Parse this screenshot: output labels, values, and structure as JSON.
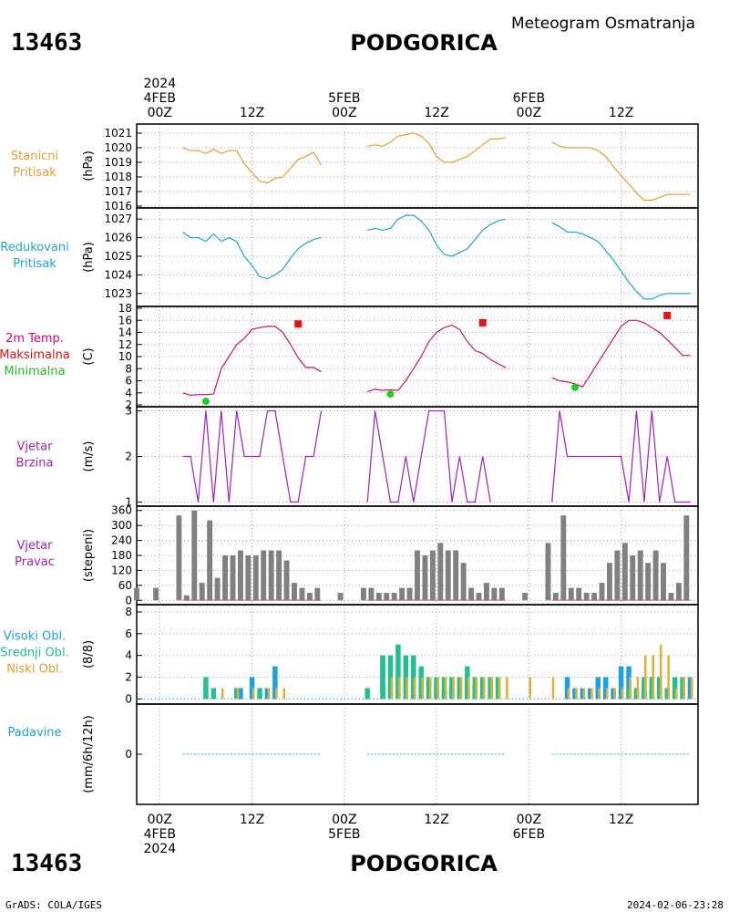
{
  "header": {
    "station_id": "13463",
    "station_name": "PODGORICA",
    "product": "Meteogram Osmatranja"
  },
  "footer": {
    "station_id": "13463",
    "station_name": "PODGORICA",
    "credit": "GrADS: COLA/IGES",
    "timestamp": "2024-02-06-23:28"
  },
  "time_axis": {
    "top_labels": [
      {
        "x": 0,
        "lines": [
          "2024",
          "4FEB",
          "00Z"
        ]
      },
      {
        "x": 12,
        "lines": [
          "12Z"
        ]
      },
      {
        "x": 24,
        "lines": [
          "5FEB",
          "00Z"
        ]
      },
      {
        "x": 36,
        "lines": [
          "12Z"
        ]
      },
      {
        "x": 48,
        "lines": [
          "6FEB",
          "00Z"
        ]
      },
      {
        "x": 60,
        "lines": [
          "12Z"
        ]
      }
    ],
    "bottom_labels": [
      {
        "x": 0,
        "lines": [
          "00Z",
          "4FEB",
          "2024"
        ]
      },
      {
        "x": 12,
        "lines": [
          "12Z"
        ]
      },
      {
        "x": 24,
        "lines": [
          "00Z",
          "5FEB"
        ]
      },
      {
        "x": 36,
        "lines": [
          "12Z"
        ]
      },
      {
        "x": 48,
        "lines": [
          "00Z",
          "6FEB"
        ]
      },
      {
        "x": 60,
        "lines": [
          "12Z"
        ]
      }
    ],
    "xlim": [
      -3,
      70
    ]
  },
  "panels": [
    {
      "id": "station-pressure",
      "label_lines": [
        {
          "text": "Stanicni",
          "color": "#e0a030"
        },
        {
          "text": "Pritisak",
          "color": "#e0a030"
        }
      ],
      "unit": "(hPa)",
      "ylim": [
        1016,
        1021.5
      ],
      "ticks": [
        1016,
        1017,
        1018,
        1019,
        1020,
        1021
      ]
    },
    {
      "id": "reduced-pressure",
      "label_lines": [
        {
          "text": "Redukovani",
          "color": "#1aa6d0"
        },
        {
          "text": "Pritisak",
          "color": "#1aa6d0"
        }
      ],
      "unit": "(hPa)",
      "ylim": [
        1022.4,
        1027.5
      ],
      "ticks": [
        1023,
        1024,
        1025,
        1026,
        1027
      ]
    },
    {
      "id": "temperature",
      "label_lines": [
        {
          "text": "2m Temp.",
          "color": "#e0007a"
        },
        {
          "text": "Maksimalna",
          "color": "#e01010"
        },
        {
          "text": "Minimalna",
          "color": "#20c020"
        }
      ],
      "unit": "(C)",
      "ylim": [
        2,
        18
      ],
      "ticks": [
        2,
        4,
        6,
        8,
        10,
        12,
        14,
        16,
        18
      ]
    },
    {
      "id": "wind-speed",
      "label_lines": [
        {
          "text": "Vjetar",
          "color": "#a020c0"
        },
        {
          "text": "Brzina",
          "color": "#a020c0"
        }
      ],
      "unit": "(m/s)",
      "ylim": [
        0.95,
        3.05
      ],
      "ticks": [
        1,
        2,
        3
      ]
    },
    {
      "id": "wind-direction",
      "label_lines": [
        {
          "text": "Vjetar",
          "color": "#a020c0"
        },
        {
          "text": "Pravac",
          "color": "#a020c0"
        }
      ],
      "unit": "(stepeni)",
      "ylim": [
        -10,
        370
      ],
      "ticks": [
        0,
        60,
        120,
        180,
        240,
        300,
        360
      ],
      "tick_labels": [
        "0",
        "60",
        "120",
        "180",
        "240",
        "300",
        "360"
      ]
    },
    {
      "id": "clouds",
      "label_lines": [
        {
          "text": "Visoki Obl.",
          "color": "#1aa6d0"
        },
        {
          "text": "Srednji Obl.",
          "color": "#20c090"
        },
        {
          "text": "Niski Obl.",
          "color": "#e0a030"
        }
      ],
      "unit": "(8/8)",
      "ylim": [
        -0.3,
        8.5
      ],
      "ticks": [
        0,
        2,
        4,
        6,
        8
      ]
    },
    {
      "id": "precipitation",
      "label_lines": [
        {
          "text": "Padavine",
          "color": "#1aa6d0"
        }
      ],
      "unit": "(mm/6h/12h)",
      "ylim": [
        -1,
        1
      ],
      "ticks": [
        0
      ]
    }
  ],
  "chart_data": [
    {
      "type": "line",
      "panel": "station-pressure",
      "color": "#e0a030",
      "segments": [
        {
          "x": [
            3,
            4,
            5,
            6,
            7,
            8,
            9,
            10,
            11,
            12,
            13,
            14,
            15,
            16,
            17,
            18,
            19,
            20,
            21
          ],
          "y": [
            1020,
            1019.8,
            1019.8,
            1019.6,
            1019.9,
            1019.6,
            1019.8,
            1019.8,
            1018.9,
            1018.3,
            1017.7,
            1017.6,
            1017.9,
            1018,
            1018.6,
            1019.2,
            1019.4,
            1019.7,
            1018.8
          ]
        },
        {
          "x": [
            27,
            28,
            29,
            30,
            31,
            32,
            33,
            34,
            35,
            36,
            37,
            38,
            39,
            40,
            41,
            42,
            43,
            44,
            45
          ],
          "y": [
            1020.1,
            1020.2,
            1020.1,
            1020.4,
            1020.8,
            1020.9,
            1021,
            1020.8,
            1020.3,
            1019.4,
            1019,
            1019,
            1019.2,
            1019.4,
            1019.8,
            1020.2,
            1020.6,
            1020.6,
            1020.7
          ]
        },
        {
          "x": [
            51,
            52,
            53,
            54,
            55,
            56,
            57,
            58,
            59,
            60,
            61,
            62,
            63,
            64,
            65,
            66,
            67,
            68,
            69
          ],
          "y": [
            1020.4,
            1020.1,
            1020,
            1020,
            1020,
            1020,
            1019.8,
            1019.4,
            1018.7,
            1018.1,
            1017.5,
            1016.9,
            1016.4,
            1016.4,
            1016.6,
            1016.8,
            1016.8,
            1016.8,
            1016.8
          ]
        }
      ]
    },
    {
      "type": "line",
      "panel": "reduced-pressure",
      "color": "#1aa6d0",
      "segments": [
        {
          "x": [
            3,
            4,
            5,
            6,
            7,
            8,
            9,
            10,
            11,
            12,
            13,
            14,
            15,
            16,
            17,
            18,
            19,
            20,
            21
          ],
          "y": [
            1026.3,
            1026,
            1026,
            1025.8,
            1026.2,
            1025.8,
            1026,
            1025.8,
            1025,
            1024.5,
            1023.9,
            1023.8,
            1024,
            1024.3,
            1024.9,
            1025.4,
            1025.7,
            1025.9,
            1026
          ]
        },
        {
          "x": [
            27,
            28,
            29,
            30,
            31,
            32,
            33,
            34,
            35,
            36,
            37,
            38,
            39,
            40,
            41,
            42,
            43,
            44,
            45
          ],
          "y": [
            1026.4,
            1026.5,
            1026.4,
            1026.5,
            1027,
            1027.2,
            1027.2,
            1026.9,
            1026.4,
            1025.6,
            1025.1,
            1025,
            1025.2,
            1025.4,
            1025.9,
            1026.4,
            1026.7,
            1026.9,
            1027
          ]
        },
        {
          "x": [
            51,
            52,
            53,
            54,
            55,
            56,
            57,
            58,
            59,
            60,
            61,
            62,
            63,
            64,
            65,
            66,
            67,
            68,
            69
          ],
          "y": [
            1026.8,
            1026.6,
            1026.3,
            1026.3,
            1026.2,
            1026,
            1025.8,
            1025.3,
            1024.8,
            1024.2,
            1023.6,
            1023.1,
            1022.7,
            1022.7,
            1022.9,
            1023,
            1023,
            1023,
            1023
          ]
        }
      ]
    },
    {
      "type": "line",
      "panel": "temperature",
      "color": "#d0106a",
      "segments": [
        {
          "x": [
            3,
            4,
            5,
            6,
            7,
            8,
            9,
            10,
            11,
            12,
            13,
            14,
            15,
            16,
            17,
            18,
            19,
            20,
            21
          ],
          "y": [
            4,
            3.6,
            3.7,
            3.7,
            3.8,
            8,
            10,
            12,
            13,
            14.5,
            14.8,
            15,
            15,
            14,
            12,
            9.8,
            8.2,
            8.2,
            7.5
          ]
        },
        {
          "x": [
            27,
            28,
            29,
            30,
            31,
            32,
            33,
            34,
            35,
            36,
            37,
            38,
            39,
            40,
            41,
            42,
            43,
            44,
            45
          ],
          "y": [
            4.2,
            4.6,
            4.4,
            4.5,
            4.4,
            6,
            8,
            10,
            12.5,
            14,
            14.8,
            15.2,
            14.5,
            12.5,
            11,
            10.5,
            9.5,
            8.8,
            8.2
          ]
        },
        {
          "x": [
            51,
            52,
            53,
            54,
            55,
            56,
            57,
            58,
            59,
            60,
            61,
            62,
            63,
            64,
            65,
            66,
            67,
            68,
            69
          ],
          "y": [
            6.5,
            6,
            5.8,
            5.5,
            5,
            7,
            9,
            11,
            13,
            15,
            16,
            16,
            15.6,
            14.8,
            14,
            12.8,
            11.5,
            10.2,
            10.2
          ]
        }
      ],
      "maximum": [
        {
          "x": 18,
          "y": 15.4
        },
        {
          "x": 42,
          "y": 15.6
        },
        {
          "x": 66,
          "y": 16.8
        }
      ],
      "minimum": [
        {
          "x": 6,
          "y": 2.6
        },
        {
          "x": 30,
          "y": 3.8
        },
        {
          "x": 54,
          "y": 4.9
        }
      ],
      "max_color": "#ee1010",
      "min_color": "#20cc20"
    },
    {
      "type": "line",
      "panel": "wind-speed",
      "color": "#a020c0",
      "segments": [
        {
          "x": [
            3,
            4,
            5,
            6,
            7,
            8,
            9,
            10,
            11,
            12,
            13,
            14,
            15,
            16,
            17,
            18,
            19,
            20,
            21
          ],
          "y": [
            2,
            2,
            1,
            3,
            1,
            3,
            1,
            3,
            2,
            2,
            2,
            3,
            3,
            2,
            1,
            1,
            2,
            2,
            3
          ]
        },
        {
          "x": [
            27,
            28,
            29,
            30,
            31,
            32,
            33,
            34,
            35,
            36,
            37,
            38,
            39,
            40,
            41,
            42,
            43,
            44,
            45
          ],
          "y": [
            1,
            3,
            2,
            1,
            1,
            2,
            1,
            2,
            3,
            3,
            3,
            1,
            2,
            1,
            1,
            2,
            1,
            null,
            null
          ]
        },
        {
          "x": [
            51,
            52,
            53,
            54,
            55,
            56,
            57,
            58,
            59,
            60,
            61,
            62,
            63,
            64,
            65,
            66,
            67,
            68,
            69
          ],
          "y": [
            1,
            3,
            2,
            2,
            2,
            2,
            2,
            2,
            2,
            2,
            1,
            3,
            1,
            3,
            1,
            2,
            1,
            1,
            1
          ]
        }
      ]
    },
    {
      "type": "bar",
      "panel": "wind-direction",
      "color": "#808080",
      "bar_width": 0.7,
      "x": [
        -3,
        -0.5,
        2.5,
        3.5,
        4.5,
        5.5,
        6.5,
        7.5,
        8.5,
        9.5,
        10.5,
        11.5,
        12.5,
        13.5,
        14.5,
        15.5,
        16.5,
        17.5,
        18.5,
        19.5,
        20.5,
        23.5,
        26.5,
        27.5,
        28.5,
        29.5,
        30.5,
        31.5,
        32.5,
        33.5,
        34.5,
        35.5,
        36.5,
        37.5,
        38.5,
        39.5,
        40.5,
        41.5,
        42.5,
        43.5,
        44.5,
        47.5,
        50.5,
        51.5,
        52.5,
        53.5,
        54.5,
        55.5,
        56.5,
        57.5,
        58.5,
        59.5,
        60.5,
        61.5,
        62.5,
        63.5,
        64.5,
        65.5,
        66.5,
        67.5,
        68.5
      ],
      "y": [
        50,
        50,
        340,
        20,
        360,
        70,
        320,
        90,
        180,
        180,
        200,
        180,
        180,
        200,
        200,
        200,
        160,
        70,
        50,
        30,
        50,
        30,
        50,
        50,
        30,
        30,
        30,
        50,
        50,
        200,
        180,
        200,
        230,
        200,
        200,
        150,
        50,
        30,
        70,
        50,
        50,
        30,
        230,
        30,
        340,
        50,
        50,
        30,
        30,
        70,
        150,
        200,
        230,
        180,
        200,
        150,
        200,
        150,
        30,
        70,
        340
      ],
      "baseline_color": "#e06060"
    },
    {
      "type": "bar",
      "panel": "clouds",
      "stacked_groups": true,
      "series": [
        {
          "name": "Visoki Obl.",
          "color": "#1aa0e8",
          "x": [
            9,
            10.5,
            12,
            14,
            15,
            29,
            36,
            37,
            38,
            39,
            40,
            41,
            53,
            54,
            55,
            56,
            57,
            58,
            59,
            60,
            61,
            62,
            63,
            64,
            66,
            69
          ],
          "y": [
            0,
            1,
            2,
            1,
            3,
            4,
            1,
            1,
            1,
            1,
            1,
            1,
            2,
            1,
            1,
            1,
            2,
            2,
            1,
            3,
            3,
            1,
            1,
            1,
            1,
            2
          ]
        },
        {
          "name": "Srednji Obl.",
          "color": "#20c090",
          "x": [
            6,
            7,
            10,
            13,
            27,
            29,
            30,
            31,
            32,
            33,
            34,
            35,
            36,
            37,
            38,
            39,
            40,
            41,
            42,
            43,
            44,
            61,
            62,
            63,
            64,
            65,
            66,
            67,
            68
          ],
          "y": [
            2,
            1,
            1,
            1,
            1,
            4,
            4,
            5,
            4,
            4,
            3,
            2,
            2,
            2,
            2,
            2,
            3,
            2,
            2,
            2,
            2,
            1,
            1,
            2,
            2,
            2,
            1,
            2,
            2
          ]
        },
        {
          "name": "Niski Obl.",
          "color": "#e0b030",
          "x": [
            8,
            10,
            12,
            14,
            15,
            16,
            30,
            31,
            32,
            33,
            34,
            35,
            36,
            37,
            38,
            39,
            40,
            41,
            42,
            43,
            44,
            45,
            48,
            51,
            53,
            54,
            55,
            56,
            57,
            58,
            59,
            60,
            61,
            62,
            63,
            64,
            65,
            66,
            67,
            68,
            69
          ],
          "y": [
            1,
            1,
            1,
            1,
            1,
            1,
            2,
            2,
            2,
            2,
            2,
            2,
            2,
            2,
            2,
            2,
            2,
            2,
            2,
            2,
            2,
            2,
            2,
            2,
            1,
            1,
            1,
            1,
            1,
            1,
            1,
            1,
            2,
            2,
            4,
            4,
            5,
            4,
            1,
            2,
            2
          ]
        }
      ]
    },
    {
      "type": "line",
      "panel": "precipitation",
      "color": "#1aa6d0",
      "segments": [
        {
          "x": [
            3,
            21
          ],
          "y": [
            0,
            0
          ]
        },
        {
          "x": [
            27,
            45
          ],
          "y": [
            0,
            0
          ]
        },
        {
          "x": [
            51,
            69
          ],
          "y": [
            0,
            0
          ]
        }
      ]
    }
  ]
}
